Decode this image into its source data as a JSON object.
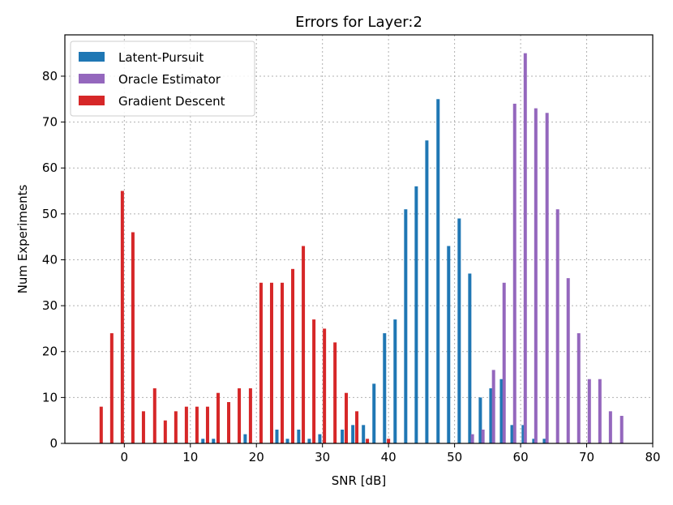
{
  "chart_data": {
    "type": "bar",
    "title": "Errors for Layer:2",
    "xlabel": "SNR [dB]",
    "ylabel": "Num Experiments",
    "xlim": [
      -9,
      80
    ],
    "ylim": [
      0,
      89
    ],
    "xticks": [
      0,
      10,
      20,
      30,
      40,
      50,
      60,
      70,
      80
    ],
    "yticks": [
      0,
      10,
      20,
      30,
      40,
      50,
      60,
      70,
      80
    ],
    "grid": true,
    "legend_position": "top-left",
    "series": [
      {
        "name": "Latent-Pursuit",
        "color": "#1f77b4",
        "x": [
          11.9,
          13.5,
          18.3,
          23.1,
          24.7,
          26.4,
          28.0,
          29.6,
          33.0,
          34.6,
          36.2,
          37.8,
          39.4,
          41.0,
          42.6,
          44.2,
          45.8,
          47.5,
          49.1,
          50.7,
          52.3,
          53.9,
          55.5,
          57.1,
          58.7,
          60.4,
          62.0,
          63.6
        ],
        "values": [
          1,
          1,
          2,
          3,
          1,
          3,
          1,
          2,
          3,
          4,
          4,
          13,
          24,
          27,
          51,
          56,
          66,
          75,
          43,
          49,
          37,
          10,
          12,
          14,
          4,
          4,
          1,
          1
        ]
      },
      {
        "name": "Oracle Estimator",
        "color": "#9467bd",
        "x": [
          52.7,
          54.3,
          55.9,
          57.5,
          59.1,
          60.7,
          62.3,
          64.0,
          65.6,
          67.2,
          68.8,
          70.4,
          72.0,
          73.6,
          75.3
        ],
        "values": [
          2,
          3,
          16,
          35,
          74,
          85,
          73,
          72,
          51,
          36,
          24,
          14,
          14,
          7,
          6
        ]
      },
      {
        "name": "Gradient Descent",
        "color": "#d62728",
        "x": [
          -3.5,
          -1.9,
          -0.3,
          1.3,
          2.9,
          4.6,
          6.2,
          7.8,
          9.4,
          11.0,
          12.6,
          14.2,
          15.8,
          17.4,
          19.1,
          20.7,
          22.3,
          23.9,
          25.5,
          27.1,
          28.7,
          30.3,
          31.9,
          33.6,
          35.2,
          36.8,
          40.0
        ],
        "values": [
          8,
          24,
          55,
          46,
          7,
          12,
          5,
          7,
          8,
          8,
          8,
          11,
          9,
          12,
          12,
          35,
          35,
          35,
          38,
          43,
          27,
          25,
          22,
          11,
          7,
          1,
          1
        ]
      }
    ]
  }
}
